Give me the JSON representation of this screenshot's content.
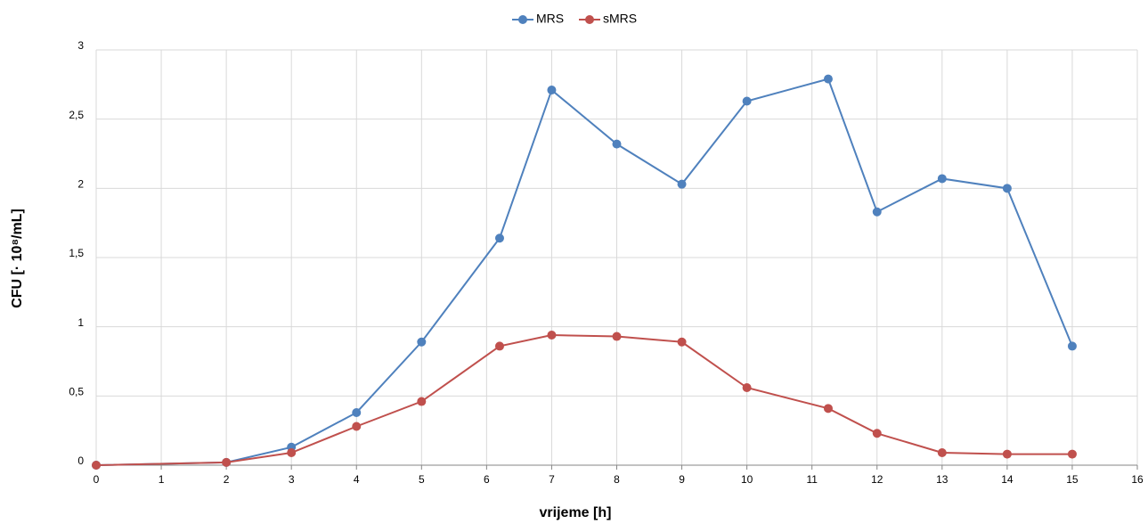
{
  "chart_data": {
    "type": "line",
    "x": [
      0,
      2,
      3,
      4,
      5,
      6.2,
      7,
      8,
      9,
      10,
      11.25,
      12,
      13,
      14,
      15
    ],
    "series": [
      {
        "name": "MRS",
        "color": "#4f81bd",
        "values": [
          0,
          0.02,
          0.13,
          0.38,
          0.89,
          1.64,
          2.71,
          2.32,
          2.03,
          2.63,
          2.79,
          1.83,
          2.07,
          2.0,
          0.86
        ]
      },
      {
        "name": "sMRS",
        "color": "#c0504d",
        "values": [
          0,
          0.02,
          0.09,
          0.28,
          0.46,
          0.86,
          0.94,
          0.93,
          0.89,
          0.56,
          0.41,
          0.23,
          0.09,
          0.08,
          0.08
        ]
      }
    ],
    "xlabel": "vrijeme [h]",
    "ylabel": "CFU [· 10⁸/mL]",
    "xlim": [
      0,
      16
    ],
    "xticks": [
      0,
      1,
      2,
      3,
      4,
      5,
      6,
      7,
      8,
      9,
      10,
      11,
      12,
      13,
      14,
      15,
      16
    ],
    "ylim": [
      0,
      3
    ],
    "yticks": [
      0,
      {
        "value": 0.5,
        "label": "0,5"
      },
      1,
      {
        "value": 1.5,
        "label": "1,5"
      },
      2,
      {
        "value": 2.5,
        "label": "2,5"
      },
      3
    ],
    "grid": true,
    "legend": "top"
  }
}
